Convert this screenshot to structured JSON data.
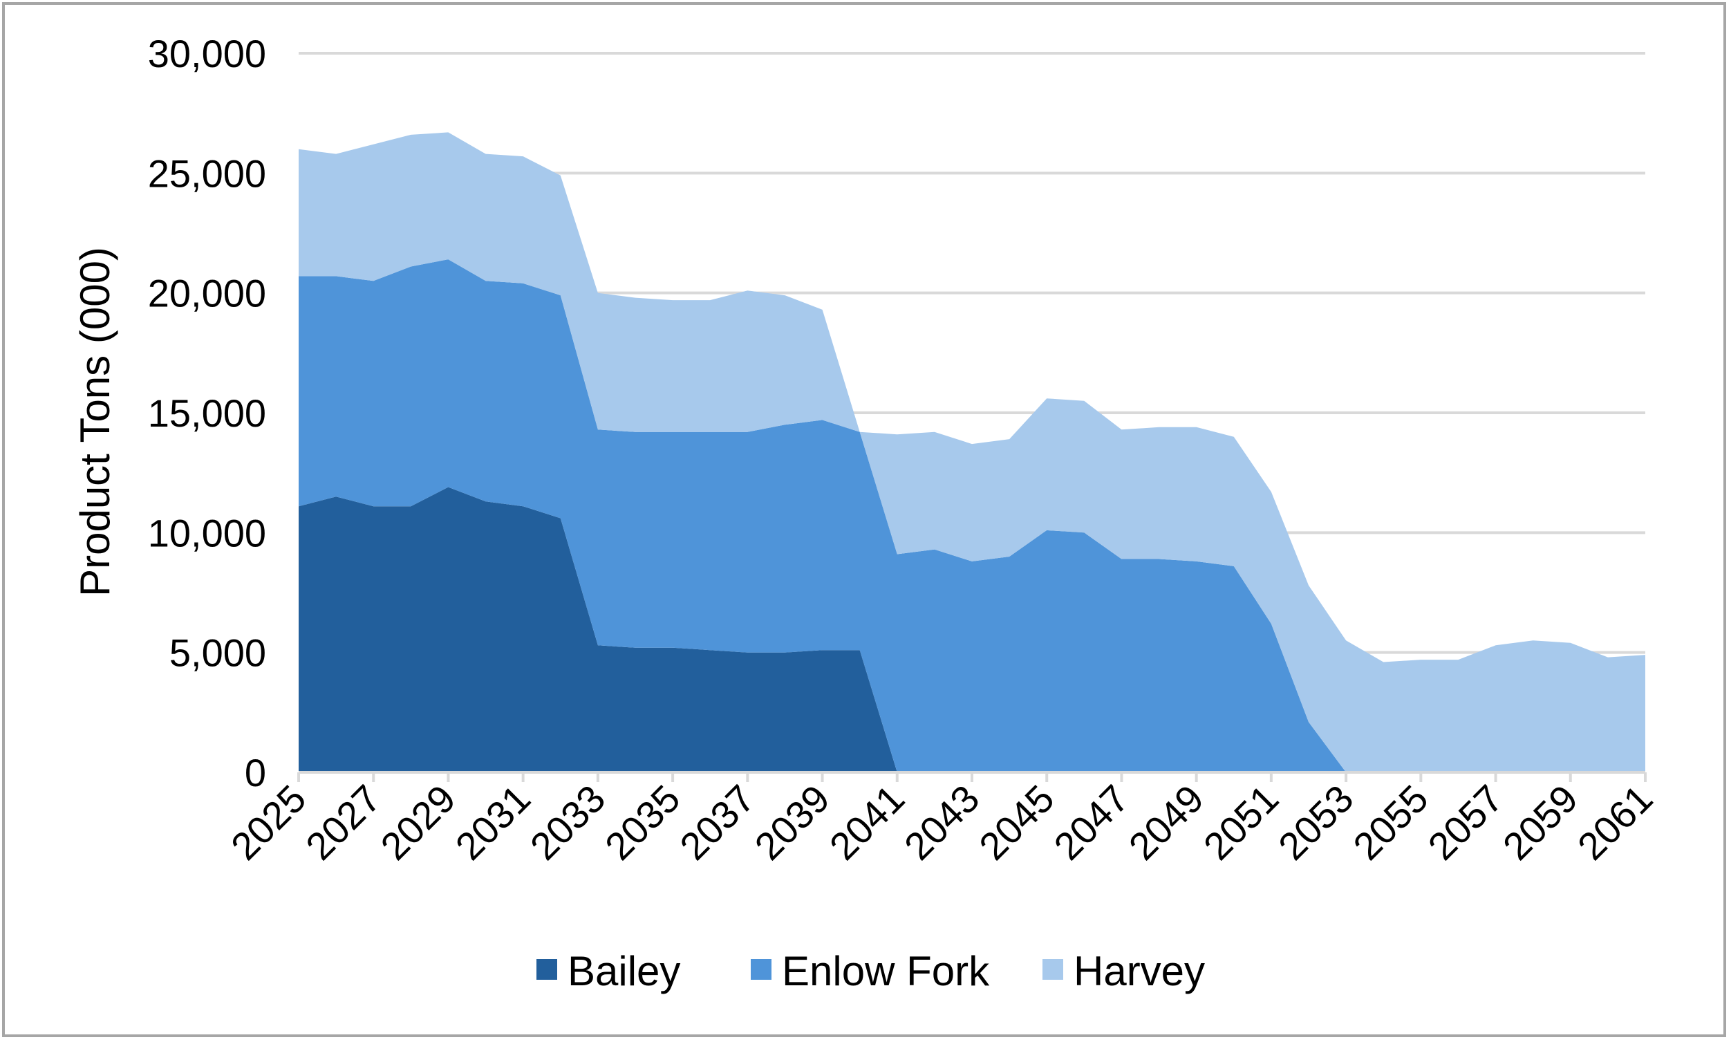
{
  "chart_data": {
    "type": "area",
    "stacked": true,
    "ylabel": "Product Tons (000)",
    "xlabel": "",
    "ylim": [
      0,
      30000
    ],
    "yticks": [
      0,
      5000,
      10000,
      15000,
      20000,
      25000,
      30000
    ],
    "ytick_labels": [
      "0",
      "5,000",
      "10,000",
      "15,000",
      "20,000",
      "25,000",
      "30,000"
    ],
    "x": [
      2025,
      2026,
      2027,
      2028,
      2029,
      2030,
      2031,
      2032,
      2033,
      2034,
      2035,
      2036,
      2037,
      2038,
      2039,
      2040,
      2041,
      2042,
      2043,
      2044,
      2045,
      2046,
      2047,
      2048,
      2049,
      2050,
      2051,
      2052,
      2053,
      2054,
      2055,
      2056,
      2057,
      2058,
      2059,
      2060,
      2061
    ],
    "xtick_labels": [
      "2025",
      "2027",
      "2029",
      "2031",
      "2033",
      "2035",
      "2037",
      "2039",
      "2041",
      "2043",
      "2045",
      "2047",
      "2049",
      "2051",
      "2053",
      "2055",
      "2057",
      "2059",
      "2061"
    ],
    "grid": true,
    "legend_position": "bottom",
    "series": [
      {
        "name": "Bailey",
        "color": "#225f9c",
        "values": [
          11100,
          11500,
          11100,
          11100,
          11900,
          11300,
          11100,
          10600,
          5300,
          5200,
          5200,
          5100,
          5000,
          5000,
          5100,
          5100,
          0,
          0,
          0,
          0,
          0,
          0,
          0,
          0,
          0,
          0,
          0,
          0,
          0,
          0,
          0,
          0,
          0,
          0,
          0,
          0,
          0
        ]
      },
      {
        "name": "Enlow Fork",
        "color": "#4f94d9",
        "values": [
          9600,
          9200,
          9400,
          10000,
          9500,
          9200,
          9300,
          9300,
          9000,
          9000,
          9000,
          9100,
          9200,
          9500,
          9600,
          9100,
          9100,
          9300,
          8800,
          9000,
          10100,
          10000,
          8900,
          8900,
          8800,
          8600,
          6200,
          2100,
          0,
          0,
          0,
          0,
          0,
          0,
          0,
          0,
          0
        ]
      },
      {
        "name": "Harvey",
        "color": "#a7c9ec",
        "values": [
          5300,
          5100,
          5700,
          5500,
          5300,
          5300,
          5300,
          5000,
          5700,
          5600,
          5500,
          5500,
          5900,
          5400,
          4600,
          0,
          5000,
          4900,
          4900,
          4900,
          5500,
          5500,
          5400,
          5500,
          5600,
          5400,
          5500,
          5700,
          5500,
          4600,
          4700,
          4700,
          5300,
          5500,
          5400,
          4800,
          4900
        ]
      }
    ]
  }
}
